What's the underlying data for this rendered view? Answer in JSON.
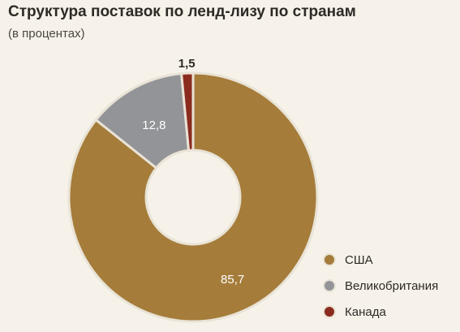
{
  "chart_data": {
    "type": "pie",
    "title": "Структура поставок по ленд-лизу по странам",
    "subtitle": "(в процентах)",
    "categories": [
      "США",
      "Великобритания",
      "Канада"
    ],
    "values": [
      85.7,
      12.8,
      1.5
    ],
    "value_labels": [
      "85,7",
      "12,8",
      "1,5"
    ],
    "colors": [
      "#a57c3a",
      "#939497",
      "#8b2b1e"
    ],
    "donut": true,
    "legend_position": "bottom-right"
  }
}
